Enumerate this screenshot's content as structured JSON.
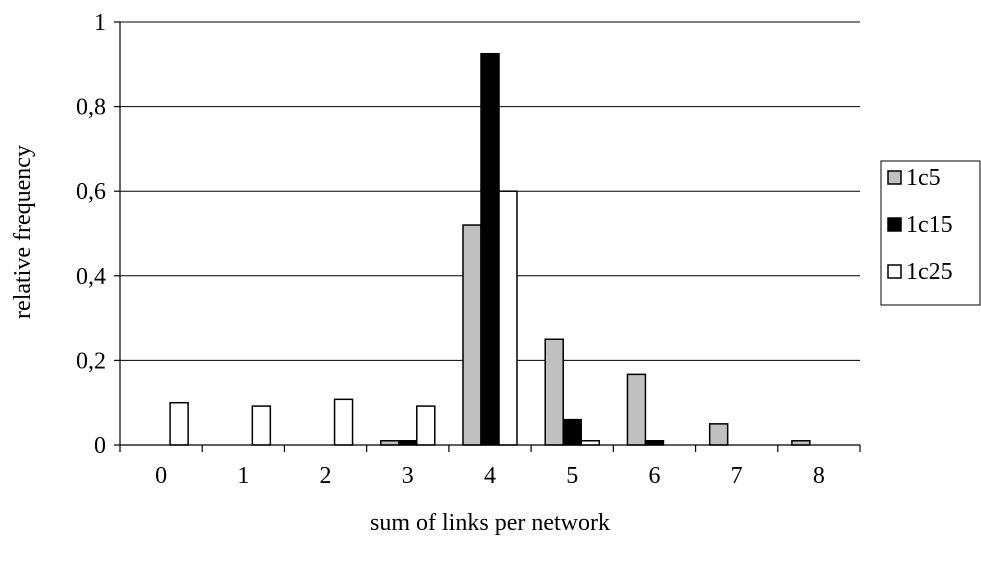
{
  "chart_data": {
    "type": "bar",
    "title": "",
    "xlabel": "sum of links per network",
    "ylabel": "relative frequency",
    "categories": [
      "0",
      "1",
      "2",
      "3",
      "4",
      "5",
      "6",
      "7",
      "8"
    ],
    "ylim": [
      0,
      1
    ],
    "yticks": [
      0,
      0.2,
      0.4,
      0.6,
      0.8,
      1
    ],
    "ytick_labels": [
      "0",
      "0,2",
      "0,4",
      "0,6",
      "0,8",
      "1"
    ],
    "grid": true,
    "legend_position": "right",
    "series": [
      {
        "name": "1c5",
        "color": "#c0c0c0",
        "values": [
          0,
          0,
          0,
          0.01,
          0.52,
          0.25,
          0.167,
          0.05,
          0.01
        ]
      },
      {
        "name": "1c15",
        "color": "#000000",
        "values": [
          0,
          0,
          0,
          0.01,
          0.925,
          0.06,
          0.01,
          0,
          0
        ]
      },
      {
        "name": "1c25",
        "color": "#ffffff",
        "values": [
          0.1,
          0.092,
          0.108,
          0.092,
          0.6,
          0.01,
          0,
          0,
          0
        ]
      }
    ]
  }
}
